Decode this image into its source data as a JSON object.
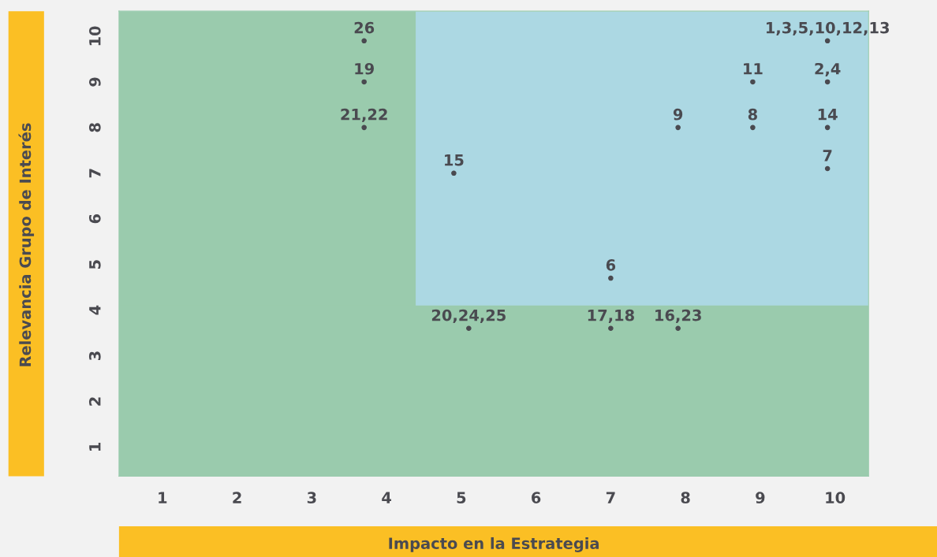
{
  "chart_data": {
    "type": "scatter",
    "xlabel": "Impacto en la Estrategia",
    "ylabel": "Relevancia Grupo de Interés",
    "xlim": [
      0.42,
      10.45
    ],
    "ylim": [
      0.36,
      10.55
    ],
    "xticks": [
      1,
      2,
      3,
      4,
      5,
      6,
      7,
      8,
      9,
      10
    ],
    "yticks": [
      1,
      2,
      3,
      4,
      5,
      6,
      7,
      8,
      9,
      10
    ],
    "grid": false,
    "marker": "circle",
    "bands": [
      {
        "axis": "x",
        "from": 0.42,
        "to": 10.45,
        "color": "#acd8e3"
      },
      {
        "axis": "x",
        "from": 0.42,
        "to": 4.39,
        "color": "#9acbad"
      },
      {
        "axis": "y",
        "from": 0.36,
        "to": 4.1,
        "color": "#9acbad"
      }
    ],
    "series": [
      {
        "name": "26",
        "color": "#4a4a50",
        "x": [
          3.7
        ],
        "values": [
          9.9
        ]
      },
      {
        "name": "19",
        "color": "#4a4a50",
        "x": [
          3.7
        ],
        "values": [
          9.0
        ]
      },
      {
        "name": "21,22",
        "color": "#4a4a50",
        "x": [
          3.7
        ],
        "values": [
          8.0
        ]
      },
      {
        "name": "15",
        "color": "#4a4a50",
        "x": [
          4.9
        ],
        "values": [
          7.0
        ]
      },
      {
        "name": "1,3,5,10,12,13",
        "color": "#4a4a50",
        "x": [
          9.9
        ],
        "values": [
          9.9
        ]
      },
      {
        "name": "11",
        "color": "#4a4a50",
        "x": [
          8.9
        ],
        "values": [
          9.0
        ]
      },
      {
        "name": "2,4",
        "color": "#4a4a50",
        "x": [
          9.9
        ],
        "values": [
          9.0
        ]
      },
      {
        "name": "9",
        "color": "#4a4a50",
        "x": [
          7.9
        ],
        "values": [
          8.0
        ]
      },
      {
        "name": "8",
        "color": "#4a4a50",
        "x": [
          8.9
        ],
        "values": [
          8.0
        ]
      },
      {
        "name": "14",
        "color": "#4a4a50",
        "x": [
          9.9
        ],
        "values": [
          8.0
        ]
      },
      {
        "name": "7",
        "color": "#4a4a50",
        "x": [
          9.9
        ],
        "values": [
          7.1
        ]
      },
      {
        "name": "6",
        "color": "#4a4a50",
        "x": [
          7.0
        ],
        "values": [
          4.7
        ]
      },
      {
        "name": "20,24,25",
        "color": "#4a4a50",
        "x": [
          5.1
        ],
        "values": [
          3.6
        ]
      },
      {
        "name": "17,18",
        "color": "#4a4a50",
        "x": [
          7.0
        ],
        "values": [
          3.6
        ]
      },
      {
        "name": "16,23",
        "color": "#4a4a50",
        "x": [
          7.9
        ],
        "values": [
          3.6
        ]
      }
    ]
  }
}
